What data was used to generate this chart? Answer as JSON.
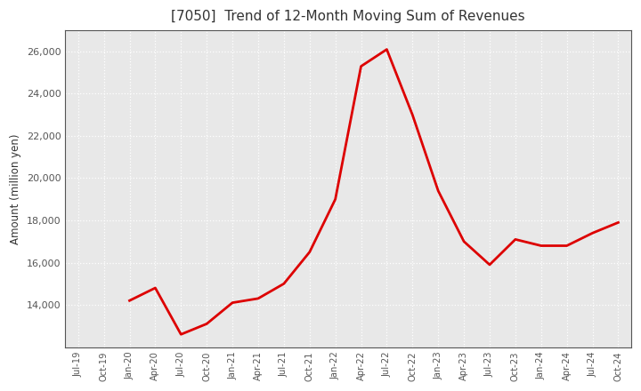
{
  "title": "[7050]  Trend of 12-Month Moving Sum of Revenues",
  "ylabel": "Amount (million yen)",
  "line_color": "#dd0000",
  "line_width": 2.0,
  "background_color": "#ffffff",
  "plot_bg_color": "#e8e8e8",
  "grid_color": "#ffffff",
  "title_color": "#333333",
  "tick_color": "#555555",
  "tick_labels": [
    "Jul-19",
    "Oct-19",
    "Jan-20",
    "Apr-20",
    "Jul-20",
    "Oct-20",
    "Jan-21",
    "Apr-21",
    "Jul-21",
    "Oct-21",
    "Jan-22",
    "Apr-22",
    "Jul-22",
    "Oct-22",
    "Jan-23",
    "Apr-23",
    "Jul-23",
    "Oct-23",
    "Jan-24",
    "Apr-24",
    "Jul-24",
    "Oct-24"
  ],
  "values": [
    null,
    null,
    14200,
    14800,
    12600,
    13100,
    14100,
    14300,
    15000,
    16500,
    19000,
    25300,
    26100,
    23000,
    19400,
    17000,
    15900,
    17100,
    16800,
    16800,
    17400,
    17900
  ],
  "ylim": [
    12000,
    27000
  ],
  "yticks": [
    14000,
    16000,
    18000,
    20000,
    22000,
    24000,
    26000
  ]
}
